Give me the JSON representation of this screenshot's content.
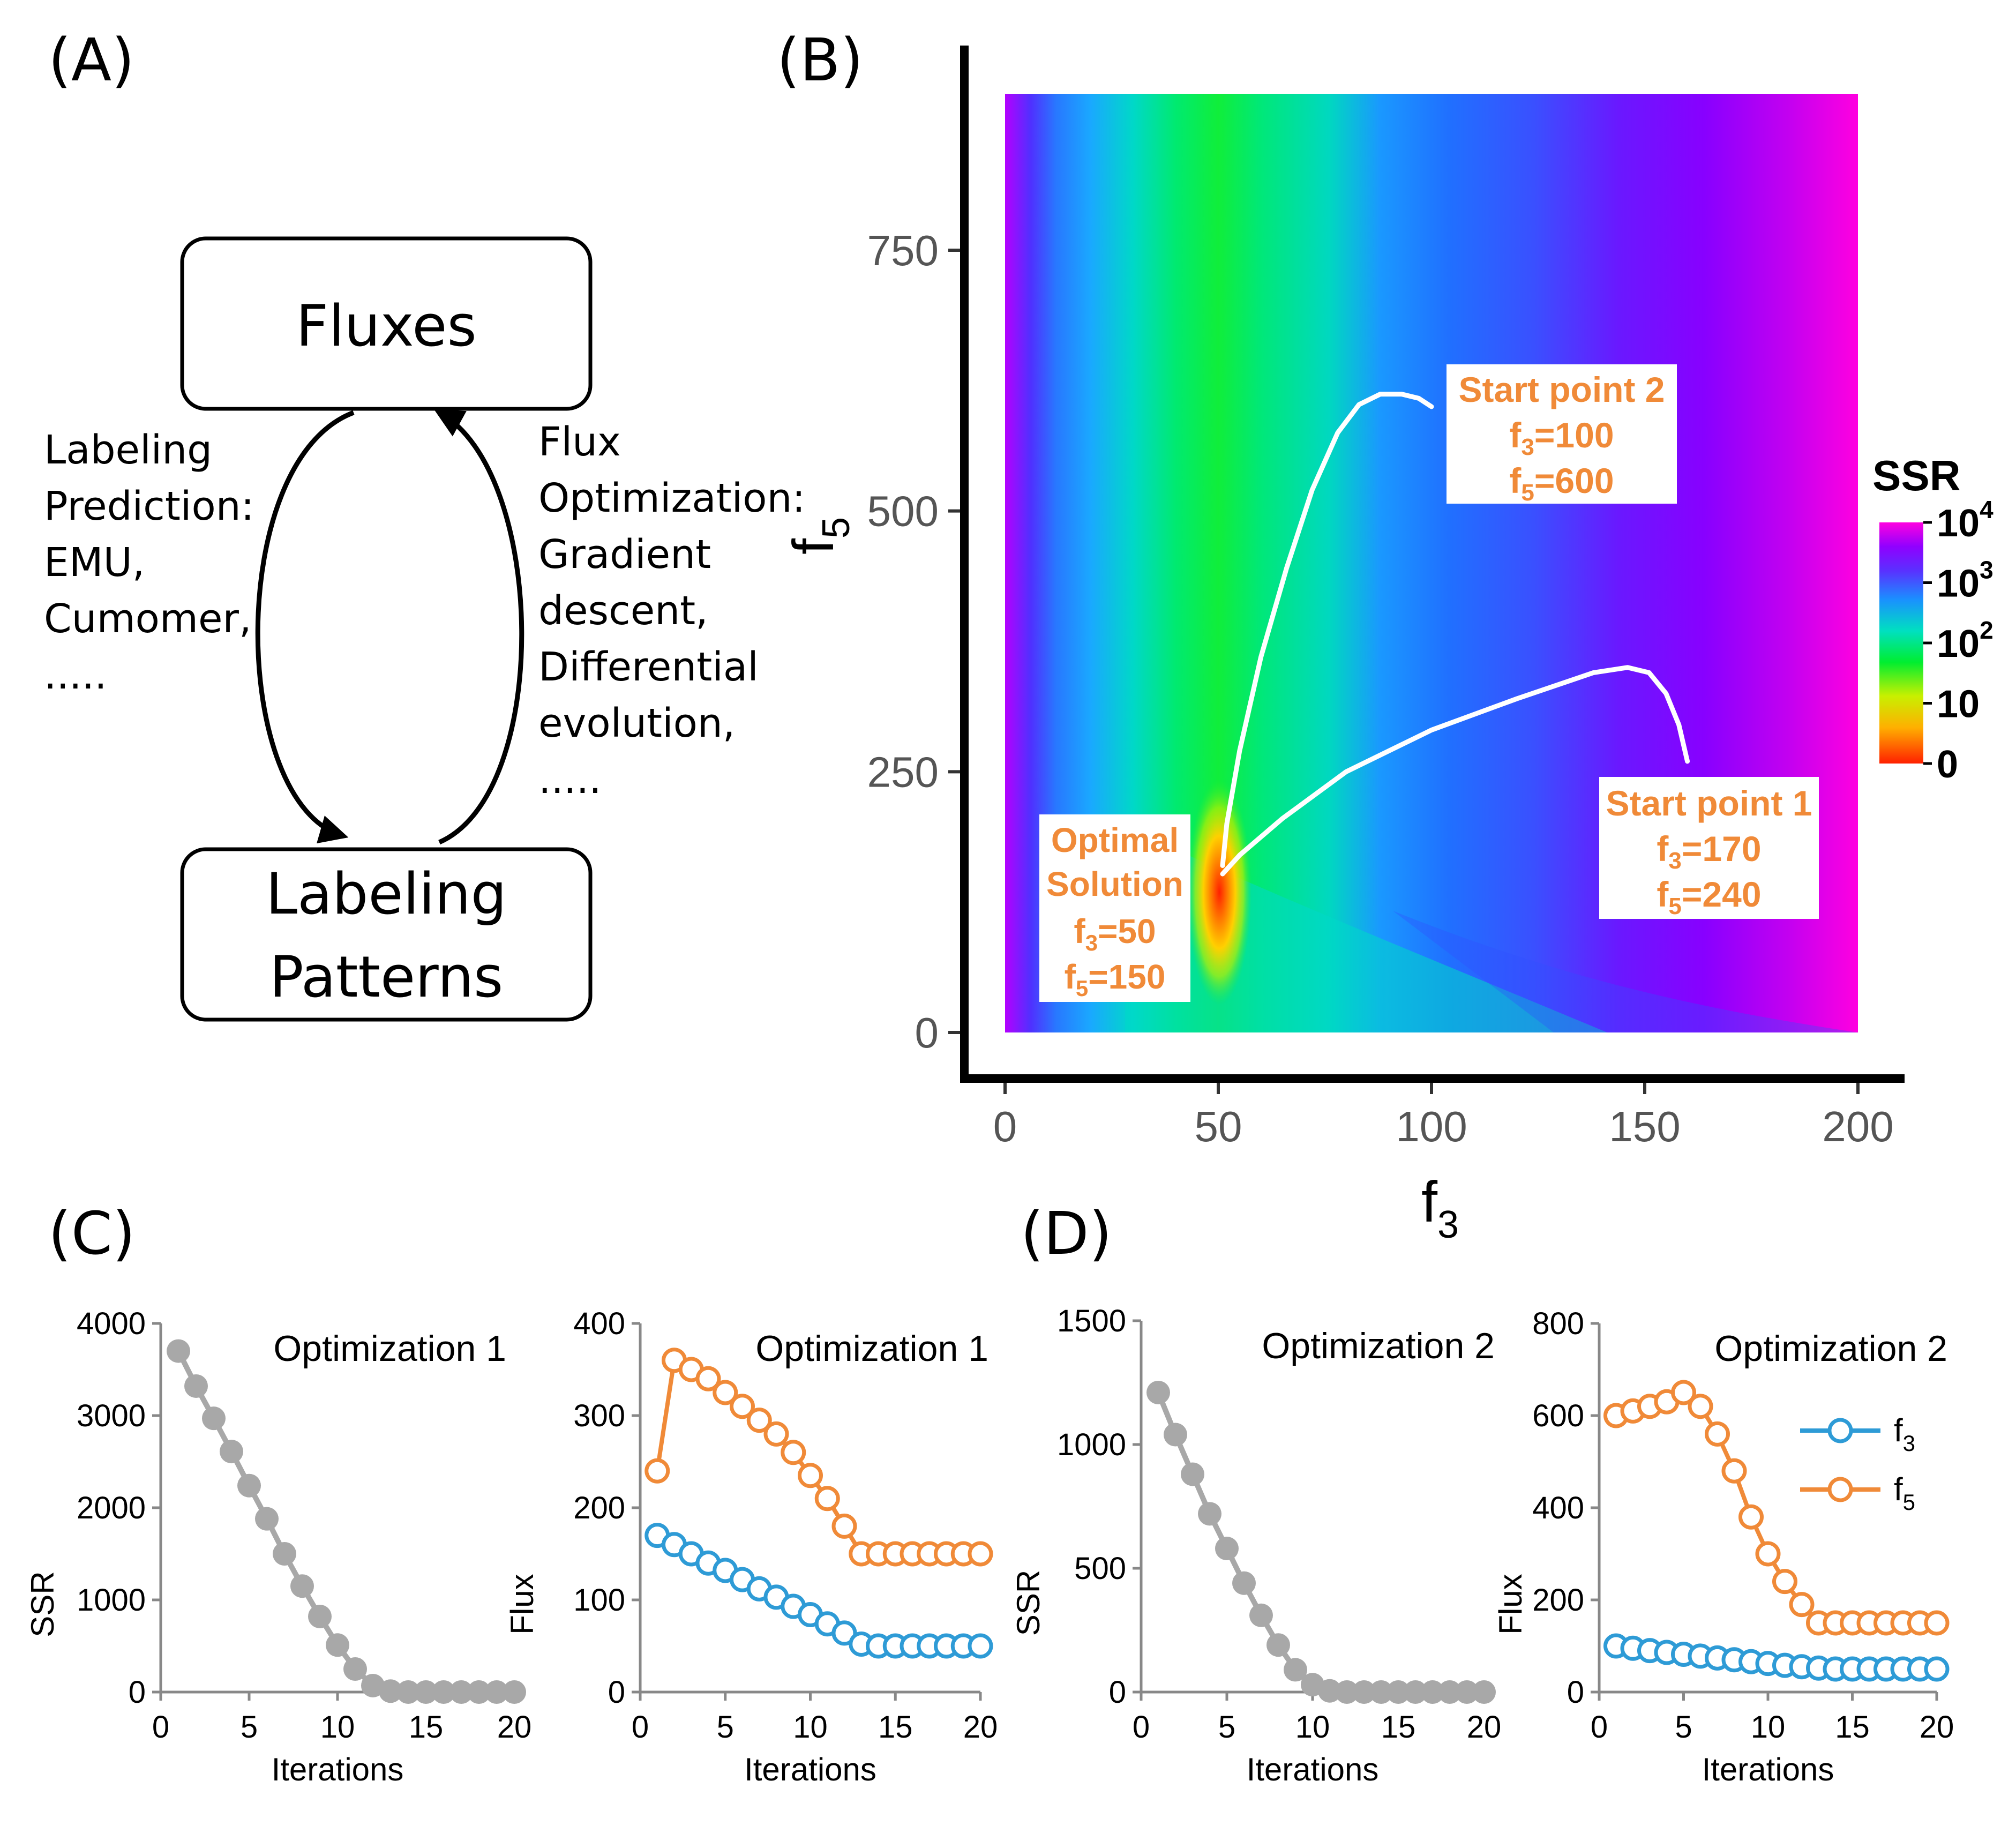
{
  "panel_labels": {
    "a": "(A)",
    "b": "(B)",
    "c": "(C)",
    "d": "(D)"
  },
  "diagram": {
    "top_box": "Fluxes",
    "bottom_box": [
      "Labeling",
      "Patterns"
    ],
    "left_text": [
      "Labeling",
      "Prediction:",
      "EMU,",
      "Cumomer,",
      "....."
    ],
    "right_text": [
      "Flux",
      "Optimization:",
      "Gradient",
      "descent,",
      "Differential",
      "evolution,",
      "....."
    ]
  },
  "colors": {
    "f3": "#2e9bd6",
    "f5": "#f08a38",
    "ssr_points": "#a8a8a8",
    "annotation": "#f08a38",
    "path": "#ffffff",
    "colorscale": [
      "#ff2a00",
      "#ffd000",
      "#00ee22",
      "#00e8b0",
      "#1a90ff",
      "#6a20ff",
      "#8a00ff",
      "#ff00e0"
    ]
  },
  "heatmap": {
    "xlabel": "f",
    "xlabel_sub": "3",
    "ylabel": "f",
    "ylabel_sub": "5",
    "xticks": [
      "0",
      "50",
      "100",
      "150",
      "200"
    ],
    "xtick_values": [
      0,
      50,
      100,
      150,
      200
    ],
    "yticks": [
      "0",
      "250",
      "500",
      "750"
    ],
    "ytick_values": [
      0,
      250,
      500,
      750
    ],
    "xlim": [
      0,
      200
    ],
    "ylim": [
      0,
      900
    ],
    "colorbar_title": "SSR",
    "colorbar_ticks": [
      {
        "base": "10",
        "exp": "4"
      },
      {
        "base": "10",
        "exp": "3"
      },
      {
        "base": "10",
        "exp": "2"
      },
      {
        "base": "10",
        "exp": ""
      },
      {
        "base": "0",
        "exp": ""
      }
    ],
    "paths": [
      {
        "name": "path-from-start-2",
        "points": [
          [
            100,
            600
          ],
          [
            97,
            608
          ],
          [
            93,
            612
          ],
          [
            88,
            612
          ],
          [
            83,
            602
          ],
          [
            78,
            575
          ],
          [
            72,
            520
          ],
          [
            66,
            445
          ],
          [
            60,
            360
          ],
          [
            55,
            270
          ],
          [
            52,
            200
          ],
          [
            51,
            160
          ]
        ]
      },
      {
        "name": "path-from-start-1",
        "points": [
          [
            160,
            260
          ],
          [
            158,
            295
          ],
          [
            155,
            325
          ],
          [
            151,
            345
          ],
          [
            146,
            350
          ],
          [
            138,
            345
          ],
          [
            120,
            320
          ],
          [
            100,
            290
          ],
          [
            80,
            250
          ],
          [
            65,
            205
          ],
          [
            55,
            170
          ],
          [
            51,
            152
          ]
        ]
      }
    ],
    "annotations": {
      "start2": {
        "title": "Start point 2",
        "l1": "f",
        "s1": "3",
        "v1": "=100",
        "l2": "f",
        "s2": "5",
        "v2": "=600"
      },
      "start1": {
        "title": "Start point 1",
        "l1": "f",
        "s1": "3",
        "v1": "=170",
        "l2": "f",
        "s2": "5",
        "v2": "=240"
      },
      "optimal": {
        "title1": "Optimal",
        "title2": "Solution",
        "l1": "f",
        "s1": "3",
        "v1": "=50",
        "l2": "f",
        "s2": "5",
        "v2": "=150"
      }
    }
  },
  "chart_data": [
    {
      "type": "scatter",
      "panel": "C-left",
      "title": "Optimization 1",
      "xlabel": "Iterations",
      "ylabel": "SSR",
      "xlim": [
        0,
        20
      ],
      "ylim": [
        0,
        4000
      ],
      "xticks": [
        "0",
        "5",
        "10",
        "15",
        "20"
      ],
      "xtick_values": [
        0,
        5,
        10,
        15,
        20
      ],
      "yticks": [
        "0",
        "1000",
        "2000",
        "3000",
        "4000"
      ],
      "ytick_values": [
        0,
        1000,
        2000,
        3000,
        4000
      ],
      "series": [
        {
          "name": "SSR",
          "marker": "filled",
          "x": [
            1,
            2,
            3,
            4,
            5,
            6,
            7,
            8,
            9,
            10,
            11,
            12,
            13,
            14,
            15,
            16,
            17,
            18,
            19,
            20
          ],
          "values": [
            3700,
            3320,
            2970,
            2610,
            2240,
            1880,
            1500,
            1150,
            820,
            510,
            250,
            70,
            10,
            0,
            0,
            0,
            0,
            0,
            0,
            0
          ]
        }
      ]
    },
    {
      "type": "line",
      "panel": "C-right",
      "title": "Optimization 1",
      "xlabel": "Iterations",
      "ylabel": "Flux",
      "xlim": [
        0,
        20
      ],
      "ylim": [
        0,
        400
      ],
      "xticks": [
        "0",
        "5",
        "10",
        "15",
        "20"
      ],
      "xtick_values": [
        0,
        5,
        10,
        15,
        20
      ],
      "yticks": [
        "0",
        "100",
        "200",
        "300",
        "400"
      ],
      "ytick_values": [
        0,
        100,
        200,
        300,
        400
      ],
      "series": [
        {
          "name": "f5",
          "color_key": "f5",
          "marker": "open",
          "x": [
            1,
            2,
            3,
            4,
            5,
            6,
            7,
            8,
            9,
            10,
            11,
            12,
            13,
            14,
            15,
            16,
            17,
            18,
            19,
            20
          ],
          "values": [
            240,
            360,
            350,
            340,
            325,
            310,
            295,
            280,
            260,
            235,
            210,
            180,
            150,
            150,
            150,
            150,
            150,
            150,
            150,
            150
          ]
        },
        {
          "name": "f3",
          "color_key": "f3",
          "marker": "open",
          "x": [
            1,
            2,
            3,
            4,
            5,
            6,
            7,
            8,
            9,
            10,
            11,
            12,
            13,
            14,
            15,
            16,
            17,
            18,
            19,
            20
          ],
          "values": [
            170,
            160,
            150,
            140,
            132,
            122,
            112,
            103,
            93,
            84,
            74,
            64,
            52,
            50,
            50,
            50,
            50,
            50,
            50,
            50
          ]
        }
      ]
    },
    {
      "type": "scatter",
      "panel": "D-left",
      "title": "Optimization 2",
      "xlabel": "Iterations",
      "ylabel": "SSR",
      "xlim": [
        0,
        20
      ],
      "ylim": [
        0,
        1500
      ],
      "xticks": [
        "0",
        "5",
        "10",
        "15",
        "20"
      ],
      "xtick_values": [
        0,
        5,
        10,
        15,
        20
      ],
      "yticks": [
        "0",
        "500",
        "1000",
        "1500"
      ],
      "ytick_values": [
        0,
        500,
        1000,
        1500
      ],
      "series": [
        {
          "name": "SSR",
          "marker": "filled",
          "x": [
            1,
            2,
            3,
            4,
            5,
            6,
            7,
            8,
            9,
            10,
            11,
            12,
            13,
            14,
            15,
            16,
            17,
            18,
            19,
            20
          ],
          "values": [
            1210,
            1040,
            880,
            720,
            580,
            440,
            310,
            190,
            90,
            30,
            5,
            0,
            0,
            0,
            0,
            0,
            0,
            0,
            0,
            0
          ]
        }
      ]
    },
    {
      "type": "line",
      "panel": "D-right",
      "title": "Optimization 2",
      "xlabel": "Iterations",
      "ylabel": "Flux",
      "xlim": [
        0,
        20
      ],
      "ylim": [
        0,
        800
      ],
      "xticks": [
        "0",
        "5",
        "10",
        "15",
        "20"
      ],
      "xtick_values": [
        0,
        5,
        10,
        15,
        20
      ],
      "yticks": [
        "0",
        "200",
        "400",
        "600",
        "800"
      ],
      "ytick_values": [
        0,
        200,
        400,
        600,
        800
      ],
      "legend": [
        {
          "label": "f",
          "sub": "3",
          "color_key": "f3"
        },
        {
          "label": "f",
          "sub": "5",
          "color_key": "f5"
        }
      ],
      "series": [
        {
          "name": "f5",
          "color_key": "f5",
          "marker": "open",
          "x": [
            1,
            2,
            3,
            4,
            5,
            6,
            7,
            8,
            9,
            10,
            11,
            12,
            13,
            14,
            15,
            16,
            17,
            18,
            19,
            20
          ],
          "values": [
            600,
            610,
            620,
            630,
            650,
            620,
            560,
            480,
            380,
            300,
            240,
            190,
            150,
            150,
            150,
            150,
            150,
            150,
            150,
            150
          ]
        },
        {
          "name": "f3",
          "color_key": "f3",
          "marker": "open",
          "x": [
            1,
            2,
            3,
            4,
            5,
            6,
            7,
            8,
            9,
            10,
            11,
            12,
            13,
            14,
            15,
            16,
            17,
            18,
            19,
            20
          ],
          "values": [
            100,
            95,
            90,
            86,
            82,
            78,
            74,
            70,
            66,
            62,
            58,
            55,
            52,
            50,
            50,
            50,
            50,
            50,
            50,
            50
          ]
        }
      ]
    }
  ]
}
